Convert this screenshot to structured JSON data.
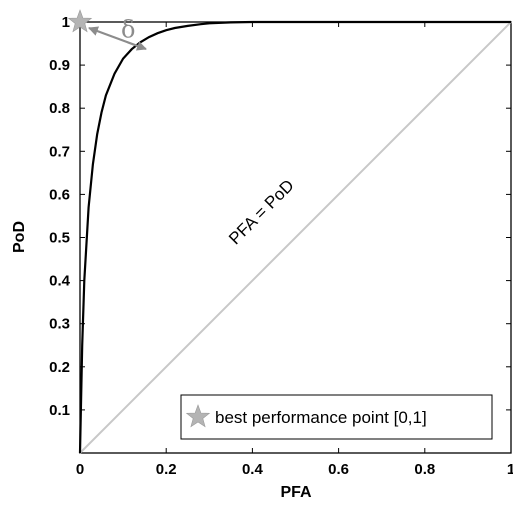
{
  "chart_data": {
    "type": "line",
    "title": "",
    "xlabel": "PFA",
    "ylabel": "PoD",
    "xlim": [
      0,
      1
    ],
    "ylim": [
      0,
      1
    ],
    "grid": false,
    "xticks": [
      "0",
      "0.2",
      "0.4",
      "0.6",
      "0.8",
      "1"
    ],
    "yticks": [
      "0.1",
      "0.2",
      "0.3",
      "0.4",
      "0.5",
      "0.6",
      "0.7",
      "0.8",
      "0.9",
      "1"
    ],
    "series": [
      {
        "color": "#000000",
        "x": [
          0,
          0.005,
          0.01,
          0.02,
          0.03,
          0.04,
          0.05,
          0.06,
          0.08,
          0.1,
          0.12,
          0.14,
          0.16,
          0.18,
          0.2,
          0.22,
          0.25,
          0.28,
          0.3,
          0.35,
          0.4,
          0.5,
          0.6,
          0.7,
          0.8,
          0.9,
          1.0
        ],
        "y": [
          0,
          0.25,
          0.4,
          0.57,
          0.67,
          0.74,
          0.79,
          0.83,
          0.88,
          0.915,
          0.937,
          0.953,
          0.965,
          0.974,
          0.981,
          0.986,
          0.991,
          0.995,
          0.997,
          0.999,
          1.0,
          1.0,
          1.0,
          1.0,
          1.0,
          1.0,
          1.0
        ]
      },
      {
        "color": "#c8c8c8",
        "x": [
          0,
          1
        ],
        "y": [
          0,
          1
        ]
      }
    ],
    "annotations": {
      "diagonal_label": "PFA = PoD",
      "delta_label": "δ",
      "best_point": {
        "x": 0,
        "y": 1,
        "color": "#b4b4b4"
      },
      "delta_arrow": {
        "from": [
          0,
          1
        ],
        "to": [
          0.16,
          0.935
        ],
        "color": "#8c8c8c"
      },
      "legend_text": "best performance point [0,1]",
      "legend_position": "bottom-right"
    }
  }
}
